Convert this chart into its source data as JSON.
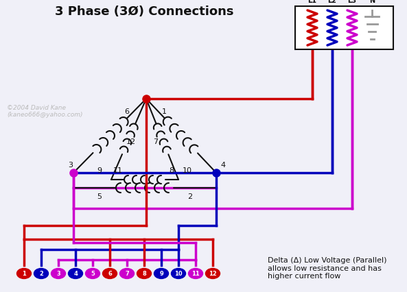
{
  "title": "3 Phase (3Ø) Connections",
  "bg": "#f0f0f8",
  "red": "#cc0000",
  "blue": "#0000bb",
  "mag": "#cc00cc",
  "blk": "#111111",
  "gray": "#999999",
  "white": "#ffffff",
  "copyright": "©2004 David Kane\n(kaneo666@yahoo.com)",
  "annotation": "Delta (Δ) Low Voltage (Parallel)\nallows low resistance and has\nhigher current flow",
  "term_colors": [
    "red",
    "blue",
    "mag",
    "blue",
    "mag",
    "red",
    "mag",
    "red",
    "blue",
    "blue",
    "mag",
    "red"
  ]
}
